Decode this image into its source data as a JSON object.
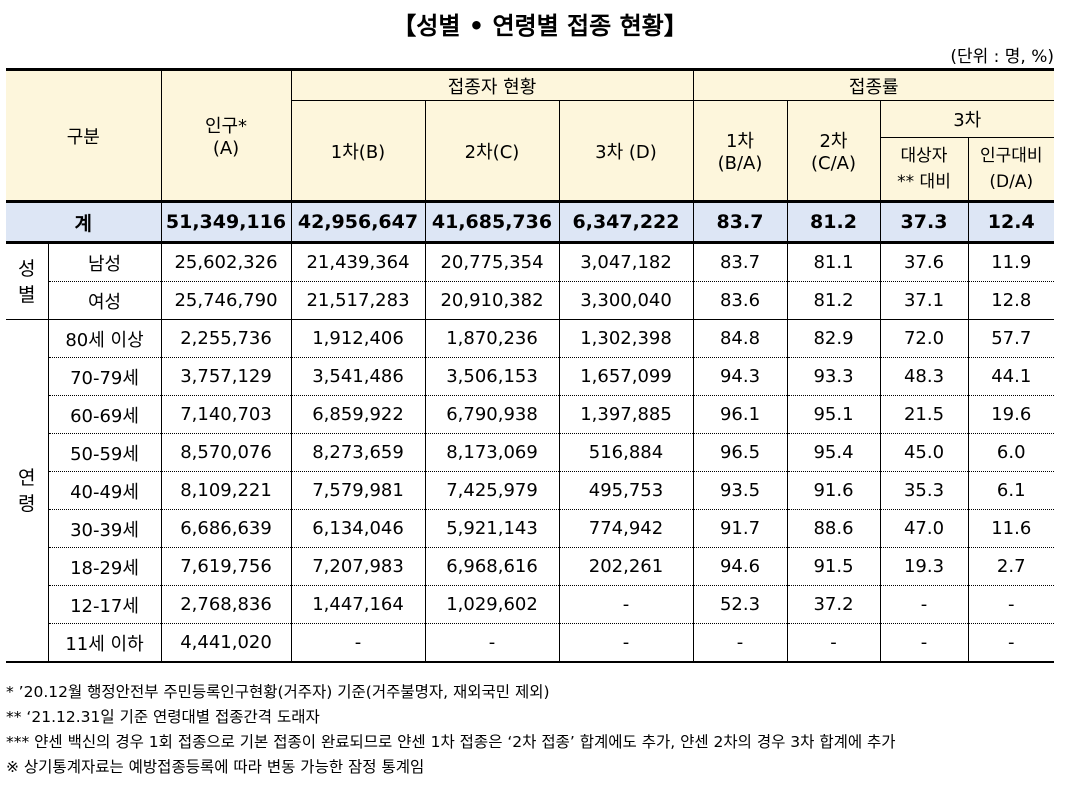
{
  "title": "【성별 • 연령별 접종 현황】",
  "unit": "(단위 : 명, %)",
  "header": {
    "category": "구분",
    "population_line1": "인구*",
    "population_line2": "(A)",
    "vaccinated_group": "접종자 현황",
    "rate_group": "접종률",
    "dose1": "1차(B)",
    "dose2": "2차(C)",
    "dose3": "3차 (D)",
    "rate1_line1": "1차",
    "rate1_line2": "(B/A)",
    "rate2_line1": "2차",
    "rate2_line2": "(C/A)",
    "rate3": "3차",
    "rate3_target_line1": "대상자",
    "rate3_target_line2": "** 대비",
    "rate3_pop_line1": "인구대비",
    "rate3_pop_line2": "(D/A)"
  },
  "total": {
    "label": "계",
    "population": "51,349,116",
    "dose1": "42,956,647",
    "dose2": "41,685,736",
    "dose3": "6,347,222",
    "rate1": "83.7",
    "rate2": "81.2",
    "rate3_target": "37.3",
    "rate3_pop": "12.4"
  },
  "sex_group": {
    "label_line1": "성",
    "label_line2": "별"
  },
  "age_group": {
    "label_line1": "연",
    "label_line2": "령"
  },
  "sex_rows": [
    {
      "label": "남성",
      "population": "25,602,326",
      "dose1": "21,439,364",
      "dose2": "20,775,354",
      "dose3": "3,047,182",
      "rate1": "83.7",
      "rate2": "81.1",
      "rate3_target": "37.6",
      "rate3_pop": "11.9"
    },
    {
      "label": "여성",
      "population": "25,746,790",
      "dose1": "21,517,283",
      "dose2": "20,910,382",
      "dose3": "3,300,040",
      "rate1": "83.6",
      "rate2": "81.2",
      "rate3_target": "37.1",
      "rate3_pop": "12.8"
    }
  ],
  "age_rows": [
    {
      "label": "80세 이상",
      "population": "2,255,736",
      "dose1": "1,912,406",
      "dose2": "1,870,236",
      "dose3": "1,302,398",
      "rate1": "84.8",
      "rate2": "82.9",
      "rate3_target": "72.0",
      "rate3_pop": "57.7"
    },
    {
      "label": "70-79세",
      "population": "3,757,129",
      "dose1": "3,541,486",
      "dose2": "3,506,153",
      "dose3": "1,657,099",
      "rate1": "94.3",
      "rate2": "93.3",
      "rate3_target": "48.3",
      "rate3_pop": "44.1"
    },
    {
      "label": "60-69세",
      "population": "7,140,703",
      "dose1": "6,859,922",
      "dose2": "6,790,938",
      "dose3": "1,397,885",
      "rate1": "96.1",
      "rate2": "95.1",
      "rate3_target": "21.5",
      "rate3_pop": "19.6"
    },
    {
      "label": "50-59세",
      "population": "8,570,076",
      "dose1": "8,273,659",
      "dose2": "8,173,069",
      "dose3": "516,884",
      "rate1": "96.5",
      "rate2": "95.4",
      "rate3_target": "45.0",
      "rate3_pop": "6.0"
    },
    {
      "label": "40-49세",
      "population": "8,109,221",
      "dose1": "7,579,981",
      "dose2": "7,425,979",
      "dose3": "495,753",
      "rate1": "93.5",
      "rate2": "91.6",
      "rate3_target": "35.3",
      "rate3_pop": "6.1"
    },
    {
      "label": "30-39세",
      "population": "6,686,639",
      "dose1": "6,134,046",
      "dose2": "5,921,143",
      "dose3": "774,942",
      "rate1": "91.7",
      "rate2": "88.6",
      "rate3_target": "47.0",
      "rate3_pop": "11.6"
    },
    {
      "label": "18-29세",
      "population": "7,619,756",
      "dose1": "7,207,983",
      "dose2": "6,968,616",
      "dose3": "202,261",
      "rate1": "94.6",
      "rate2": "91.5",
      "rate3_target": "19.3",
      "rate3_pop": "2.7"
    },
    {
      "label": "12-17세",
      "population": "2,768,836",
      "dose1": "1,447,164",
      "dose2": "1,029,602",
      "dose3": "-",
      "rate1": "52.3",
      "rate2": "37.2",
      "rate3_target": "-",
      "rate3_pop": "-"
    },
    {
      "label": "11세 이하",
      "population": "4,441,020",
      "dose1": "-",
      "dose2": "-",
      "dose3": "-",
      "rate1": "-",
      "rate2": "-",
      "rate3_target": "-",
      "rate3_pop": "-"
    }
  ],
  "notes": [
    "* ’20.12월 행정안전부 주민등록인구현황(거주자) 기준(거주불명자, 재외국민 제외)",
    "** ‘21.12.31일 기준 연령대별 접종간격 도래자",
    "*** 얀센 백신의 경우 1회 접종으로 기본 접종이 완료되므로 얀센 1차 접종은 ‘2차 접종’ 합계에도 추가, 얀센 2차의 경우 3차 합계에 추가",
    "※ 상기통계자료는 예방접종등록에 따라 변동 가능한 잠정 통계임"
  ]
}
